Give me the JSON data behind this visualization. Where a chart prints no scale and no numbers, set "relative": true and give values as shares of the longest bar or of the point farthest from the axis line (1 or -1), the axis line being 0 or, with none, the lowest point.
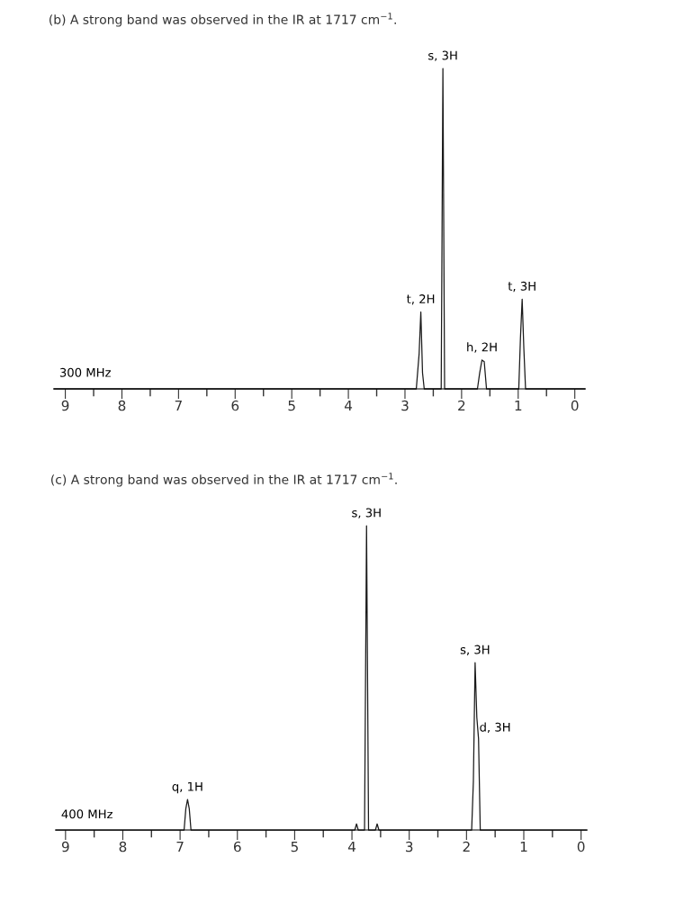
{
  "chart_data": [
    {
      "type": "line",
      "title": "(b) A strong band was observed in the IR at 1717 cm$^{−1}$.",
      "relative": true,
      "xlim": [
        9.2,
        -0.18
      ],
      "xticks": [
        9,
        {
          "value": 8.5,
          "label": null
        },
        8,
        {
          "value": 7.5,
          "label": null
        },
        7,
        {
          "value": 6.5,
          "label": null
        },
        6,
        {
          "value": 5.5,
          "label": null
        },
        5,
        {
          "value": 4.5,
          "label": null
        },
        4,
        {
          "value": 3.5,
          "label": null
        },
        3,
        {
          "value": 2.5,
          "label": null
        },
        2,
        {
          "value": 1.5,
          "label": null
        },
        1,
        {
          "value": 0.5,
          "label": null
        },
        0
      ],
      "tick_labels": "x",
      "legend": false,
      "marker": "none",
      "line_style": "solid",
      "series": [
        {
          "color": "#1a1a1a",
          "x": [
            9.2,
            2.8,
            2.75,
            2.72,
            2.69,
            2.66,
            2.36,
            2.33,
            2.3,
            1.72,
            1.68,
            1.64,
            1.6,
            1.56,
            0.99,
            0.96,
            0.93,
            0.9,
            0.87,
            -0.18
          ],
          "values": [
            0,
            0,
            0.11,
            0.24,
            0.05,
            0,
            0,
            1,
            0,
            0,
            0.05,
            0.09,
            0.085,
            0,
            0,
            0.16,
            0.28,
            0.125,
            0,
            0
          ]
        }
      ],
      "annotations": [
        {
          "text": "s, 3H",
          "x": 2.33,
          "y": 1
        },
        {
          "text": "t, 2H",
          "x": 2.72,
          "y": 0.24
        },
        {
          "text": "h, 2H",
          "x": 1.64,
          "y": 0.09
        },
        {
          "text": "t, 3H",
          "x": 0.93,
          "y": 0.28
        },
        "300 MHz"
      ]
    },
    {
      "type": "line",
      "title": "(c) A strong band was observed in the IR at 1717 cm$^{−1}$.",
      "relative": true,
      "xlim": [
        9.17,
        -0.1
      ],
      "xticks": [
        9,
        {
          "value": 8.5,
          "label": null
        },
        8,
        {
          "value": 7.5,
          "label": null
        },
        7,
        {
          "value": 6.5,
          "label": null
        },
        6,
        {
          "value": 5.5,
          "label": null
        },
        5,
        {
          "value": 4.5,
          "label": null
        },
        4,
        {
          "value": 3.5,
          "label": null
        },
        3,
        {
          "value": 2.5,
          "label": null
        },
        2,
        {
          "value": 1.5,
          "label": null
        },
        1,
        {
          "value": 0.5,
          "label": null
        },
        0
      ],
      "tick_labels": "x",
      "legend": false,
      "marker": "none",
      "line_style": "solid",
      "series": [
        {
          "color": "#1a1a1a",
          "x": [
            9.17,
            6.93,
            6.9,
            6.87,
            6.84,
            6.81,
            3.95,
            3.92,
            3.89,
            3.78,
            3.745,
            3.71,
            3.59,
            3.56,
            3.53,
            1.91,
            1.88,
            1.85,
            1.82,
            1.79,
            1.76,
            -0.1
          ],
          "values": [
            0,
            0,
            0.07,
            0.1,
            0.07,
            0,
            0,
            0.02,
            0,
            0,
            1,
            0,
            0,
            0.02,
            0,
            0,
            0.16,
            0.55,
            0.37,
            0.3,
            0,
            0
          ]
        }
      ],
      "annotations": [
        {
          "text": "s, 3H",
          "x": 3.745,
          "y": 1
        },
        {
          "text": "q, 1H",
          "x": 6.87,
          "y": 0.1
        },
        {
          "text": "s, 3H",
          "x": 1.85,
          "y": 0.55
        },
        {
          "text": "d, 3H",
          "x": 1.82,
          "y": 0.37
        },
        "400 MHz"
      ]
    }
  ]
}
